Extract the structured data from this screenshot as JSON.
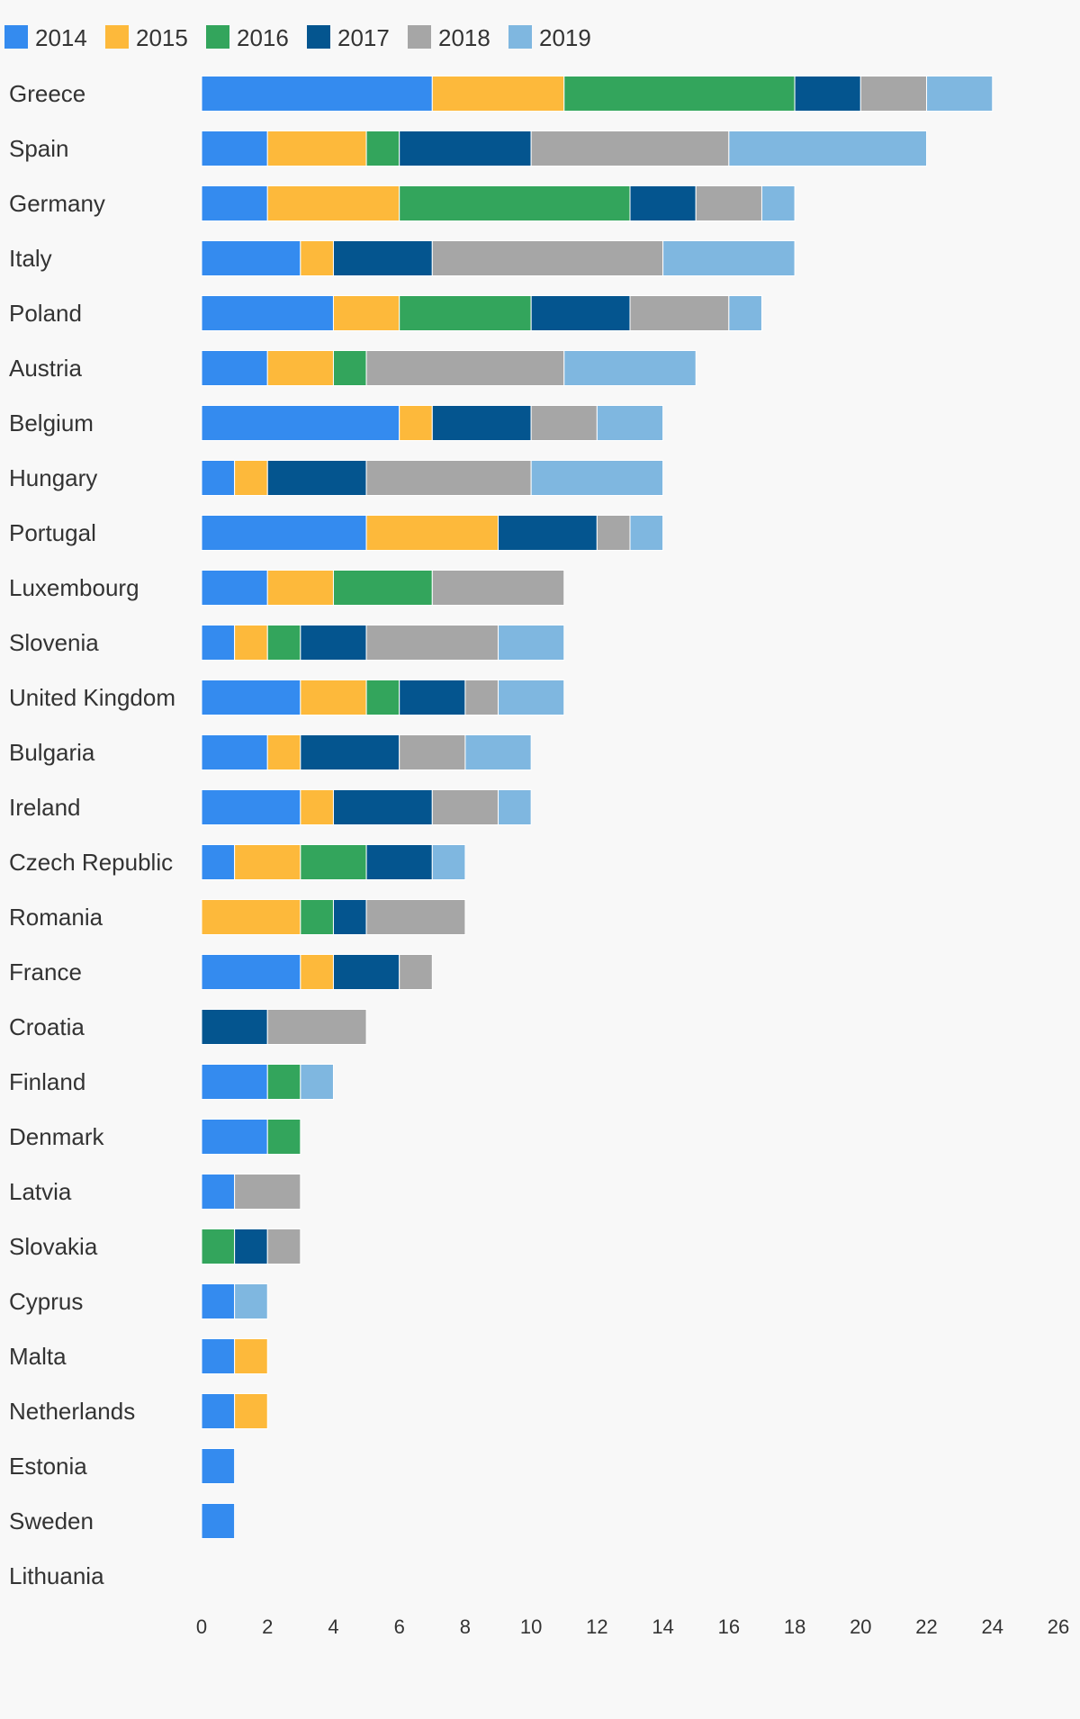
{
  "chart_data": {
    "type": "bar",
    "orientation": "horizontal",
    "stacked": true,
    "title": "",
    "xlabel": "",
    "ylabel": "",
    "xlim": [
      0,
      26
    ],
    "xticks": [
      0,
      2,
      4,
      6,
      8,
      10,
      12,
      14,
      16,
      18,
      20,
      22,
      24,
      26
    ],
    "grid": false,
    "legend": "top-left",
    "categories": [
      "Greece",
      "Spain",
      "Germany",
      "Italy",
      "Poland",
      "Austria",
      "Belgium",
      "Hungary",
      "Portugal",
      "Luxembourg",
      "Slovenia",
      "United Kingdom",
      "Bulgaria",
      "Ireland",
      "Czech Republic",
      "Romania",
      "France",
      "Croatia",
      "Finland",
      "Denmark",
      "Latvia",
      "Slovakia",
      "Cyprus",
      "Malta",
      "Netherlands",
      "Estonia",
      "Sweden",
      "Lithuania"
    ],
    "series": [
      {
        "name": "2014",
        "color": "#348bef",
        "values": [
          7,
          2,
          2,
          3,
          4,
          2,
          6,
          1,
          5,
          2,
          1,
          3,
          2,
          3,
          1,
          0,
          3,
          0,
          2,
          2,
          1,
          0,
          1,
          1,
          1,
          1,
          1,
          0
        ]
      },
      {
        "name": "2015",
        "color": "#fdb93b",
        "values": [
          4,
          3,
          4,
          1,
          2,
          2,
          1,
          1,
          4,
          2,
          1,
          2,
          1,
          1,
          2,
          3,
          1,
          0,
          0,
          0,
          0,
          0,
          0,
          1,
          1,
          0,
          0,
          0
        ]
      },
      {
        "name": "2016",
        "color": "#33a55c",
        "values": [
          7,
          1,
          7,
          0,
          4,
          1,
          0,
          0,
          0,
          3,
          1,
          1,
          0,
          0,
          2,
          1,
          0,
          0,
          1,
          1,
          0,
          1,
          0,
          0,
          0,
          0,
          0,
          0
        ]
      },
      {
        "name": "2017",
        "color": "#04558f",
        "values": [
          2,
          4,
          2,
          3,
          3,
          0,
          3,
          3,
          3,
          0,
          2,
          2,
          3,
          3,
          2,
          1,
          2,
          2,
          0,
          0,
          0,
          1,
          0,
          0,
          0,
          0,
          0,
          0
        ]
      },
      {
        "name": "2018",
        "color": "#a6a6a6",
        "values": [
          2,
          6,
          2,
          7,
          3,
          6,
          2,
          5,
          1,
          4,
          4,
          1,
          2,
          2,
          0,
          3,
          1,
          3,
          0,
          0,
          2,
          1,
          0,
          0,
          0,
          0,
          0,
          0
        ]
      },
      {
        "name": "2019",
        "color": "#7fb7e0",
        "values": [
          2,
          6,
          1,
          4,
          1,
          4,
          2,
          4,
          1,
          0,
          2,
          2,
          2,
          1,
          1,
          0,
          0,
          0,
          1,
          0,
          0,
          0,
          1,
          0,
          0,
          0,
          0,
          0
        ]
      }
    ]
  }
}
